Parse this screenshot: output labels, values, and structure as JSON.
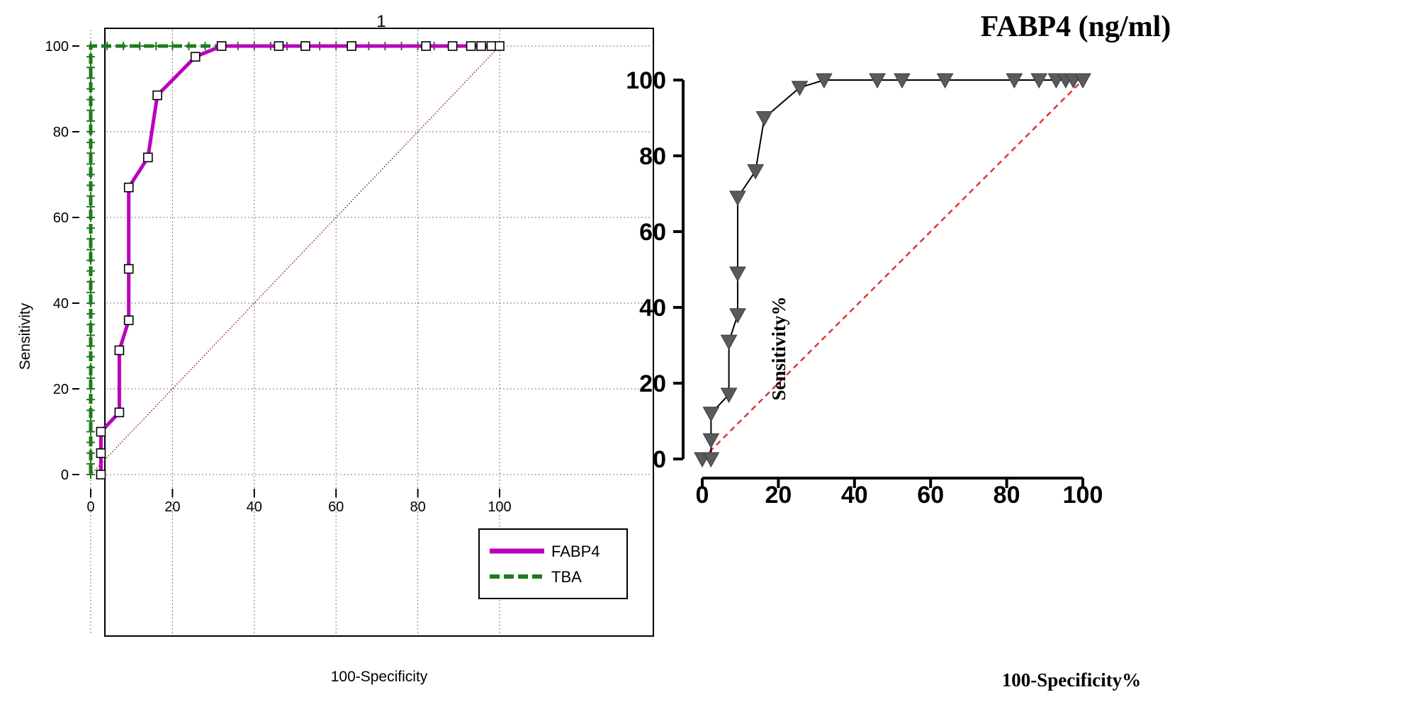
{
  "chart_data": [
    {
      "type": "line",
      "title": "1",
      "xlabel": "100-Specificity",
      "ylabel": "Sensitivity",
      "xlim": [
        0,
        100
      ],
      "ylim": [
        0,
        100
      ],
      "xticks": [
        "0",
        "20",
        "40",
        "60",
        "80",
        "100"
      ],
      "yticks": [
        "0",
        "20",
        "40",
        "60",
        "80",
        "100"
      ],
      "grid": true,
      "legend_position": "bottom-right",
      "reference_line": {
        "x": [
          0,
          100
        ],
        "y": [
          0,
          100
        ],
        "color": "#8B2323",
        "style": "dotted"
      },
      "series": [
        {
          "name": "FABP4",
          "color": "#BB00BB",
          "style": "solid",
          "marker": "square",
          "x": [
            2.5,
            2.5,
            2.5,
            7,
            7,
            9.3,
            9.3,
            9.3,
            14,
            16.3,
            25.6,
            32,
            46,
            52.5,
            63.8,
            82,
            88.5,
            93,
            95.5,
            98,
            100
          ],
          "y": [
            0,
            5,
            10,
            14.5,
            29,
            36,
            48,
            67,
            74,
            88.5,
            97.5,
            100,
            100,
            100,
            100,
            100,
            100,
            100,
            100,
            100,
            100
          ]
        },
        {
          "name": "TBA",
          "color": "#1E7B1E",
          "style": "dashed",
          "marker": "plus",
          "x": [
            0,
            0,
            0,
            0,
            0,
            0,
            0,
            0,
            0,
            0,
            0,
            0,
            0,
            0,
            0,
            0,
            0,
            0,
            0,
            0,
            0,
            0,
            0,
            0,
            0,
            0,
            0,
            0,
            0,
            0,
            0,
            0,
            0,
            0,
            0,
            0,
            0,
            0,
            0,
            0,
            0,
            0,
            4,
            8,
            12,
            16,
            20,
            24,
            28,
            32,
            36,
            40,
            44,
            48,
            52,
            56,
            60,
            64,
            68,
            72,
            76,
            80,
            84,
            88,
            92,
            96,
            100
          ],
          "y": [
            0,
            2.5,
            5,
            7.5,
            10,
            12.5,
            15,
            17.5,
            20,
            22.5,
            25,
            27.5,
            30,
            32.5,
            35,
            37.5,
            40,
            42.5,
            45,
            47.5,
            50,
            52.5,
            55,
            57.5,
            60,
            62.5,
            65,
            67.5,
            70,
            72.5,
            75,
            77.5,
            80,
            82.5,
            85,
            87.5,
            90,
            92.5,
            95,
            97.5,
            100,
            100,
            100,
            100,
            100,
            100,
            100,
            100,
            100,
            100,
            100,
            100,
            100,
            100,
            100,
            100,
            100,
            100,
            100,
            100,
            100,
            100,
            100,
            100,
            100,
            100,
            100
          ]
        }
      ]
    },
    {
      "type": "line",
      "title": "FABP4 (ng/ml)",
      "xlabel": "100-Specificity%",
      "ylabel": "Sensitivity%",
      "xlim": [
        0,
        100
      ],
      "ylim": [
        0,
        100
      ],
      "xticks": [
        "0",
        "20",
        "40",
        "60",
        "80",
        "100"
      ],
      "yticks": [
        "0",
        "20",
        "40",
        "60",
        "80",
        "100"
      ],
      "grid": false,
      "reference_line": {
        "x": [
          0,
          100
        ],
        "y": [
          0,
          100
        ],
        "color": "#E53333",
        "style": "dashed"
      },
      "series": [
        {
          "color": "#5a5a5a",
          "marker": "triangle-down",
          "x": [
            0,
            2.3,
            2.3,
            2.3,
            7,
            7,
            9.3,
            9.3,
            9.3,
            14,
            16.3,
            25.6,
            32,
            46,
            52.5,
            63.8,
            82,
            88.5,
            93,
            95.5,
            97.5,
            100
          ],
          "y": [
            0,
            0,
            5,
            12,
            17,
            31,
            38,
            49,
            69,
            76,
            90,
            98,
            100,
            100,
            100,
            100,
            100,
            100,
            100,
            100,
            100,
            100
          ]
        }
      ]
    }
  ]
}
